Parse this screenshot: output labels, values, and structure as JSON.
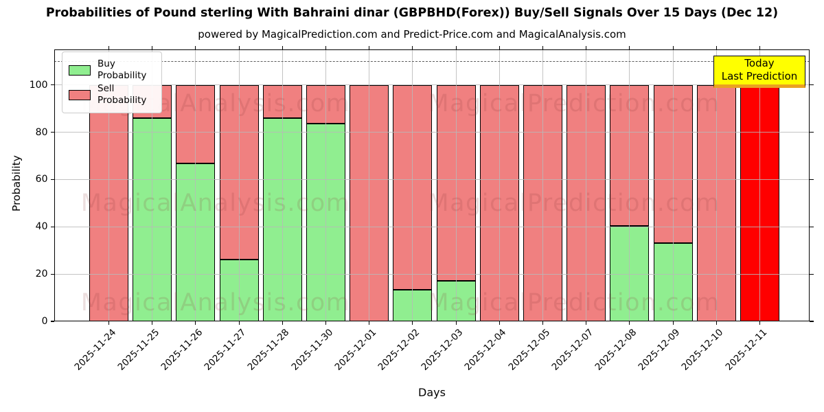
{
  "title": "Probabilities of Pound sterling With Bahraini dinar (GBPBHD(Forex)) Buy/Sell Signals Over 15 Days (Dec 12)",
  "subtitle": "powered by MagicalPrediction.com and Predict-Price.com and MagicalAnalysis.com",
  "legend": {
    "buy_label": "Buy Probability",
    "sell_label": "Sell Probability"
  },
  "annotation": {
    "line1": "Today",
    "line2": "Last Prediction"
  },
  "watermarks": {
    "left": "MagicalAnalysis.com",
    "right": "MagicalPrediction.com"
  },
  "axes": {
    "xlabel": "Days",
    "ylabel": "Probability",
    "yticks": [
      0,
      20,
      40,
      60,
      80,
      100
    ],
    "ylim": [
      0,
      115
    ],
    "dashed_line_y": 110
  },
  "colors": {
    "buy": "#90EE90",
    "sell": "#F08080",
    "today_bar": "#FF0000",
    "annotation_bg": "#FFFF00",
    "annotation_edge_bottom": "#EAA221",
    "grid": "#B9B9B9",
    "dashed_line": "#5A5A5A"
  },
  "chart_data": {
    "type": "bar",
    "stacked": true,
    "title": "Probabilities of Pound sterling With Bahraini dinar (GBPBHD(Forex)) Buy/Sell Signals Over 15 Days (Dec 12)",
    "xlabel": "Days",
    "ylabel": "Probability",
    "ylim": [
      0,
      115
    ],
    "grid": true,
    "legend_position": "upper left",
    "categories": [
      "2025-11-24",
      "2025-11-25",
      "2025-11-26",
      "2025-11-27",
      "2025-11-28",
      "2025-11-30",
      "2025-12-01",
      "2025-12-02",
      "2025-12-03",
      "2025-12-04",
      "2025-12-05",
      "2025-12-07",
      "2025-12-08",
      "2025-12-09",
      "2025-12-10",
      "2025-12-11"
    ],
    "series": [
      {
        "name": "Buy Probability",
        "color": "#90EE90",
        "values": [
          0,
          86,
          66.7,
          26,
          86,
          83.5,
          0,
          13.5,
          17,
          0,
          0,
          0,
          40.5,
          33,
          0,
          0
        ]
      },
      {
        "name": "Sell Probability",
        "color": "#F08080",
        "values": [
          100,
          14,
          33.3,
          74,
          14,
          16.5,
          100,
          86.5,
          83,
          100,
          100,
          100,
          59.5,
          67,
          100,
          100
        ]
      }
    ],
    "today_bar": {
      "index": 15,
      "color": "#FF0000",
      "total": 100,
      "label": "Today Last Prediction"
    },
    "dashed_reference_line": 110
  }
}
